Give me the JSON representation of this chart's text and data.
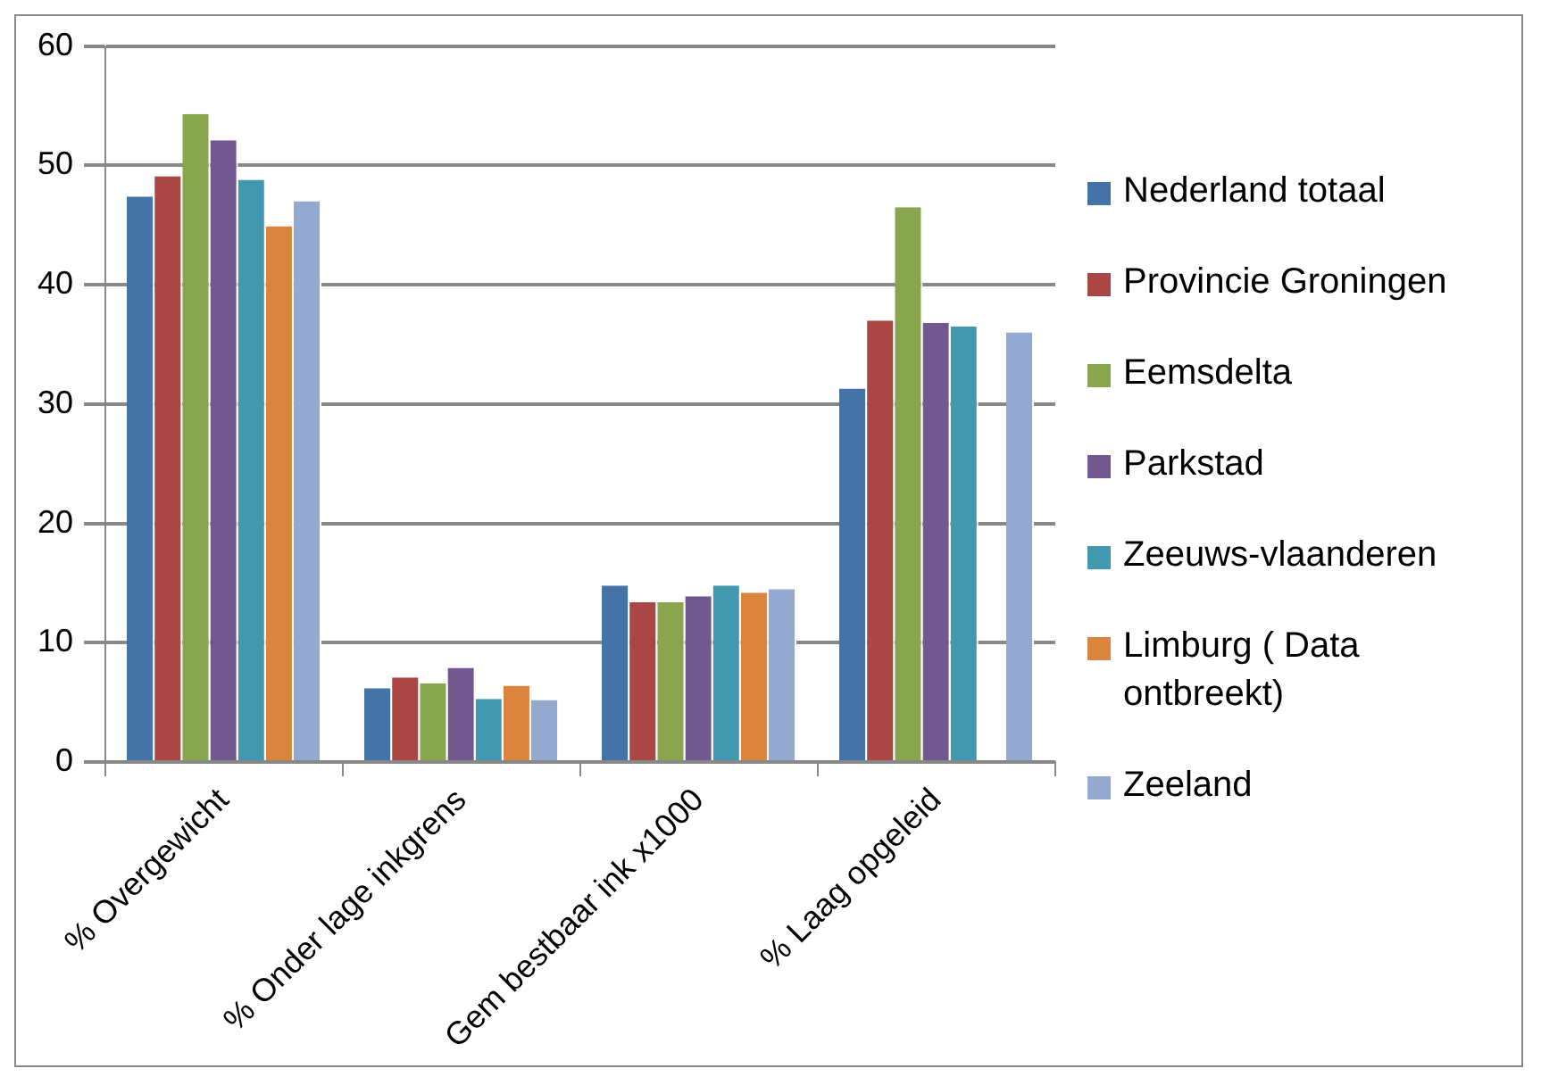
{
  "chart_data": {
    "type": "bar",
    "categories": [
      "% Overgewicht",
      "% Onder lage inkgrens",
      "Gem bestbaar ink x1000",
      "% Laag opgeleid"
    ],
    "series": [
      {
        "name": "Nederland totaal",
        "color": "#4572a7",
        "values": [
          47.4,
          6.2,
          14.8,
          31.3
        ]
      },
      {
        "name": "Provincie Groningen",
        "color": "#aa4643",
        "values": [
          49.1,
          7.1,
          13.4,
          37.0
        ]
      },
      {
        "name": "Eemsdelta",
        "color": "#89a54e",
        "values": [
          54.3,
          6.6,
          13.4,
          46.5
        ]
      },
      {
        "name": "Parkstad",
        "color": "#71588f",
        "values": [
          52.1,
          7.9,
          13.9,
          36.8
        ]
      },
      {
        "name": "Zeeuws-vlaanderen",
        "color": "#4198af",
        "values": [
          48.8,
          5.3,
          14.8,
          36.5
        ]
      },
      {
        "name": "Limburg ( Data ontbreekt)",
        "color": "#db843d",
        "values": [
          44.9,
          6.4,
          14.2,
          null
        ]
      },
      {
        "name": "Zeeland",
        "color": "#93a9cf",
        "values": [
          47.0,
          5.2,
          14.5,
          36.0
        ]
      }
    ],
    "ylim": [
      0,
      60
    ],
    "yticks": [
      0,
      10,
      20,
      30,
      40,
      50,
      60
    ],
    "grid": "y",
    "legend": "right"
  }
}
